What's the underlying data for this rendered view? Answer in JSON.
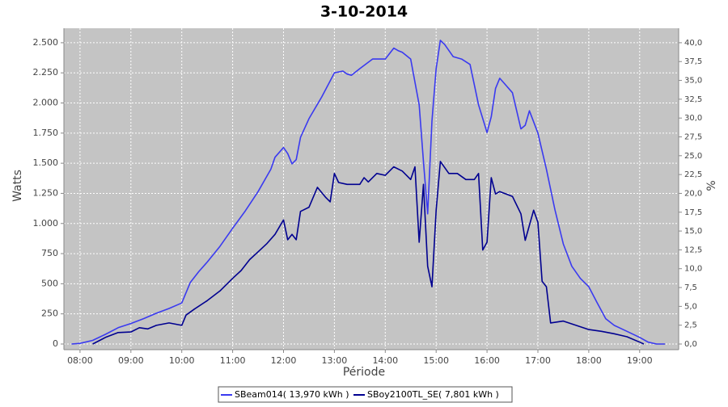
{
  "chart_data": {
    "type": "line",
    "title": "3-10-2014",
    "x_label": "Période",
    "y_label": "Watts",
    "y2_label": "%",
    "xlim": [
      "07:41",
      "19:46"
    ],
    "xticks": [
      "08:00",
      "09:00",
      "10:00",
      "11:00",
      "12:00",
      "13:00",
      "14:00",
      "15:00",
      "16:00",
      "17:00",
      "18:00",
      "19:00"
    ],
    "ylim": [
      -47,
      2620
    ],
    "yticks": [
      0,
      250,
      500,
      750,
      {
        "value": 1000,
        "label": "1.000"
      },
      {
        "value": 1250,
        "label": "1.250"
      },
      {
        "value": 1500,
        "label": "1.500"
      },
      {
        "value": 1750,
        "label": "1.750"
      },
      {
        "value": 2000,
        "label": "2.000"
      },
      {
        "value": 2250,
        "label": "2.250"
      },
      {
        "value": 2500,
        "label": "2.500"
      }
    ],
    "y2lim": [
      -0.75,
      41.92
    ],
    "y2ticks": [
      {
        "value": 0,
        "label": "0,0"
      },
      {
        "value": 2.5,
        "label": "2,5"
      },
      {
        "value": 5,
        "label": "5,0"
      },
      {
        "value": 7.5,
        "label": "7,5"
      },
      {
        "value": 10,
        "label": "10,0"
      },
      {
        "value": 12.5,
        "label": "12,5"
      },
      {
        "value": 15,
        "label": "15,0"
      },
      {
        "value": 17.5,
        "label": "17,5"
      },
      {
        "value": 20,
        "label": "20,0"
      },
      {
        "value": 22.5,
        "label": "22,5"
      },
      {
        "value": 25,
        "label": "25,0"
      },
      {
        "value": 27.5,
        "label": "27,5"
      },
      {
        "value": 30,
        "label": "30,0"
      },
      {
        "value": 32.5,
        "label": "32,5"
      },
      {
        "value": 35,
        "label": "35,0"
      },
      {
        "value": 37.5,
        "label": "37,5"
      },
      {
        "value": 40,
        "label": "40,0"
      }
    ],
    "grid": true,
    "legend": "bottom",
    "series": [
      {
        "name": "SBeam014( 13,970 kWh )",
        "color": "#3a3af0",
        "x": [
          "07:50",
          "08:00",
          "08:15",
          "08:30",
          "08:45",
          "09:00",
          "09:15",
          "09:30",
          "09:45",
          "10:00",
          "10:10",
          "10:20",
          "10:30",
          "10:45",
          "11:00",
          "11:15",
          "11:30",
          "11:45",
          "11:50",
          "12:00",
          "12:05",
          "12:10",
          "12:15",
          "12:20",
          "12:30",
          "12:45",
          "13:00",
          "13:10",
          "13:15",
          "13:20",
          "13:30",
          "13:45",
          "14:00",
          "14:10",
          "14:15",
          "14:20",
          "14:30",
          "14:40",
          "14:45",
          "14:50",
          "14:55",
          "15:00",
          "15:05",
          "15:10",
          "15:20",
          "15:30",
          "15:40",
          "15:50",
          "16:00",
          "16:05",
          "16:10",
          "16:15",
          "16:20",
          "16:30",
          "16:40",
          "16:45",
          "16:50",
          "17:00",
          "17:10",
          "17:20",
          "17:30",
          "17:40",
          "17:50",
          "18:00",
          "18:10",
          "18:20",
          "18:30",
          "18:45",
          "19:00",
          "19:10",
          "19:20",
          "19:30"
        ],
        "values": [
          0,
          5,
          30,
          80,
          135,
          170,
          210,
          255,
          295,
          340,
          510,
          600,
          680,
          810,
          960,
          1105,
          1265,
          1450,
          1550,
          1630,
          1580,
          1495,
          1530,
          1715,
          1870,
          2050,
          2250,
          2265,
          2240,
          2230,
          2285,
          2365,
          2365,
          2455,
          2435,
          2420,
          2365,
          1985,
          1515,
          1080,
          1850,
          2285,
          2520,
          2485,
          2385,
          2365,
          2320,
          1985,
          1755,
          1885,
          2120,
          2205,
          2165,
          2085,
          1785,
          1815,
          1935,
          1750,
          1450,
          1115,
          830,
          645,
          545,
          475,
          340,
          210,
          155,
          105,
          55,
          15,
          0,
          0
        ]
      },
      {
        "name": "SBoy2100TL_SE( 7,801 kWh )",
        "color": "#000090",
        "x": [
          "08:15",
          "08:30",
          "08:45",
          "09:00",
          "09:10",
          "09:20",
          "09:30",
          "09:45",
          "10:00",
          "10:05",
          "10:15",
          "10:30",
          "10:45",
          "11:00",
          "11:10",
          "11:20",
          "11:30",
          "11:40",
          "11:50",
          "12:00",
          "12:05",
          "12:10",
          "12:15",
          "12:20",
          "12:30",
          "12:40",
          "12:50",
          "12:55",
          "13:00",
          "13:05",
          "13:15",
          "13:30",
          "13:35",
          "13:40",
          "13:50",
          "14:00",
          "14:10",
          "14:20",
          "14:30",
          "14:35",
          "14:40",
          "14:45",
          "14:50",
          "14:55",
          "15:00",
          "15:05",
          "15:15",
          "15:25",
          "15:35",
          "15:45",
          "15:50",
          "15:55",
          "16:00",
          "16:05",
          "16:10",
          "16:15",
          "16:30",
          "16:40",
          "16:45",
          "16:55",
          "17:00",
          "17:05",
          "17:10",
          "17:15",
          "17:30",
          "17:45",
          "18:00",
          "18:15",
          "18:30",
          "18:45",
          "19:00",
          "19:05"
        ],
        "values": [
          0,
          55,
          95,
          100,
          135,
          125,
          155,
          175,
          155,
          240,
          290,
          360,
          440,
          545,
          610,
          700,
          765,
          830,
          910,
          1030,
          865,
          910,
          865,
          1100,
          1135,
          1300,
          1215,
          1180,
          1415,
          1340,
          1325,
          1325,
          1380,
          1345,
          1415,
          1400,
          1470,
          1435,
          1365,
          1470,
          845,
          1325,
          645,
          475,
          1110,
          1515,
          1415,
          1415,
          1365,
          1365,
          1415,
          780,
          845,
          1380,
          1245,
          1265,
          1225,
          1080,
          860,
          1110,
          1010,
          520,
          475,
          175,
          190,
          155,
          120,
          105,
          85,
          60,
          15,
          0
        ]
      }
    ]
  }
}
